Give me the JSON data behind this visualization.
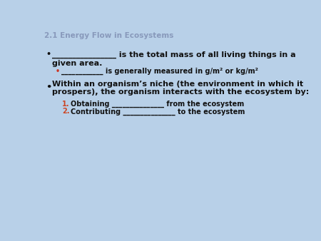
{
  "background_color": "#b8d0e8",
  "title": "2.1 Energy Flow in Ecosystems",
  "title_color": "#8899bb",
  "title_fontsize": 7.5,
  "bold_color": "#111111",
  "num_color": "#cc4422",
  "sub_bullet_dot_color": "#cc3322",
  "main_fontsize": 8.0,
  "sub_fontsize": 7.0,
  "num_fontsize": 7.0,
  "bullet1_l1": "________________ is the total mass of all living things in a",
  "bullet1_l2": "given area.",
  "sub_text": "____________ is generally measured in g/m² or kg/m²",
  "b2_l1": "Within an organism’s niche (the environment in which it",
  "b2_l2": "prospers), the organism interacts with the ecosystem by:",
  "num1_label": "1.",
  "num1_text": "Obtaining _______________ from the ecosystem",
  "num2_label": "2.",
  "num2_text": "Contributing _______________ to the ecosystem"
}
